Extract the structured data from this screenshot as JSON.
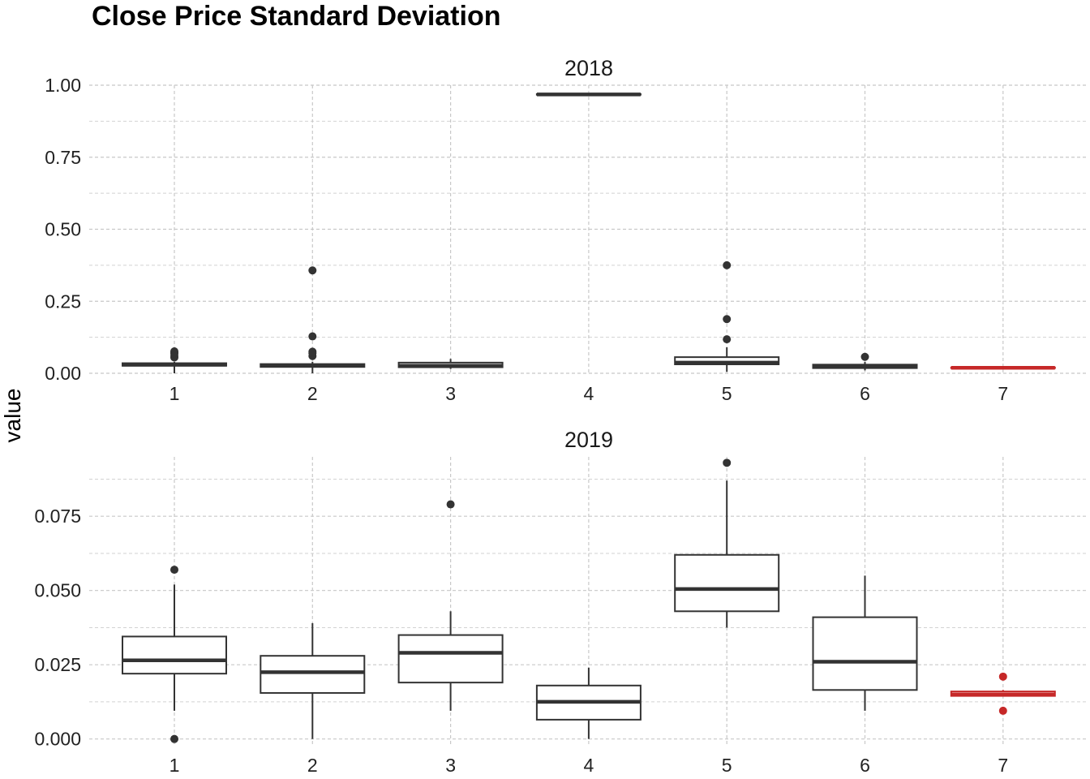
{
  "chart_data": {
    "type": "boxplot",
    "title": "Close Price Standard Deviation",
    "ylabel": "value",
    "xlabel": "",
    "grid": true,
    "highlight_color": "#c62828",
    "default_color": "#333333",
    "panels": [
      {
        "strip": "2018",
        "categories": [
          "1",
          "2",
          "3",
          "4",
          "5",
          "6",
          "7"
        ],
        "ylim": [
          0,
          1.0
        ],
        "yticks": [
          0.0,
          0.25,
          0.5,
          0.75,
          1.0
        ],
        "ytick_labels": [
          "0.00",
          "0.25",
          "0.50",
          "0.75",
          "1.00"
        ],
        "boxes": [
          {
            "x": "1",
            "lower": 0.0,
            "q1": 0.026,
            "median": 0.03,
            "q3": 0.035,
            "upper": 0.04,
            "outliers": [
              0.055,
              0.06,
              0.068,
              0.072,
              0.076
            ],
            "highlight": false
          },
          {
            "x": "2",
            "lower": 0.0,
            "q1": 0.022,
            "median": 0.027,
            "q3": 0.032,
            "upper": 0.04,
            "outliers": [
              0.06,
              0.07,
              0.075,
              0.128,
              0.357
            ],
            "highlight": false
          },
          {
            "x": "3",
            "lower": 0.015,
            "q1": 0.021,
            "median": 0.026,
            "q3": 0.037,
            "upper": 0.05,
            "outliers": [],
            "highlight": false
          },
          {
            "x": "4",
            "lower": 0.967,
            "q1": 0.967,
            "median": 0.968,
            "q3": 0.969,
            "upper": 0.969,
            "outliers": [],
            "highlight": false
          },
          {
            "x": "5",
            "lower": 0.005,
            "q1": 0.031,
            "median": 0.037,
            "q3": 0.056,
            "upper": 0.09,
            "outliers": [
              0.118,
              0.188,
              0.375
            ],
            "highlight": false
          },
          {
            "x": "6",
            "lower": 0.01,
            "q1": 0.018,
            "median": 0.024,
            "q3": 0.03,
            "upper": 0.04,
            "outliers": [
              0.057
            ],
            "highlight": false
          },
          {
            "x": "7",
            "lower": 0.017,
            "q1": 0.018,
            "median": 0.019,
            "q3": 0.02,
            "upper": 0.021,
            "outliers": [],
            "highlight": true
          }
        ]
      },
      {
        "strip": "2019",
        "categories": [
          "1",
          "2",
          "3",
          "4",
          "5",
          "6",
          "7"
        ],
        "ylim": [
          -0.002,
          0.095
        ],
        "yticks": [
          0.0,
          0.025,
          0.05,
          0.075
        ],
        "ytick_labels": [
          "0.000",
          "0.025",
          "0.050",
          "0.075"
        ],
        "boxes": [
          {
            "x": "1",
            "lower": 0.0095,
            "q1": 0.022,
            "median": 0.0265,
            "q3": 0.0345,
            "upper": 0.052,
            "outliers": [
              0.0,
              0.057
            ],
            "highlight": false
          },
          {
            "x": "2",
            "lower": 0.0,
            "q1": 0.0155,
            "median": 0.0225,
            "q3": 0.028,
            "upper": 0.039,
            "outliers": [],
            "highlight": false
          },
          {
            "x": "3",
            "lower": 0.0095,
            "q1": 0.019,
            "median": 0.029,
            "q3": 0.035,
            "upper": 0.043,
            "outliers": [
              0.079
            ],
            "highlight": false
          },
          {
            "x": "4",
            "lower": 0.0,
            "q1": 0.0065,
            "median": 0.0125,
            "q3": 0.018,
            "upper": 0.024,
            "outliers": [],
            "highlight": false
          },
          {
            "x": "5",
            "lower": 0.0375,
            "q1": 0.043,
            "median": 0.0505,
            "q3": 0.062,
            "upper": 0.087,
            "outliers": [
              0.093
            ],
            "highlight": false
          },
          {
            "x": "6",
            "lower": 0.0095,
            "q1": 0.0165,
            "median": 0.026,
            "q3": 0.041,
            "upper": 0.055,
            "outliers": [],
            "highlight": false
          },
          {
            "x": "7",
            "lower": 0.0145,
            "q1": 0.0145,
            "median": 0.015,
            "q3": 0.016,
            "upper": 0.0165,
            "outliers": [
              0.0095,
              0.021
            ],
            "highlight": true
          }
        ]
      }
    ]
  }
}
